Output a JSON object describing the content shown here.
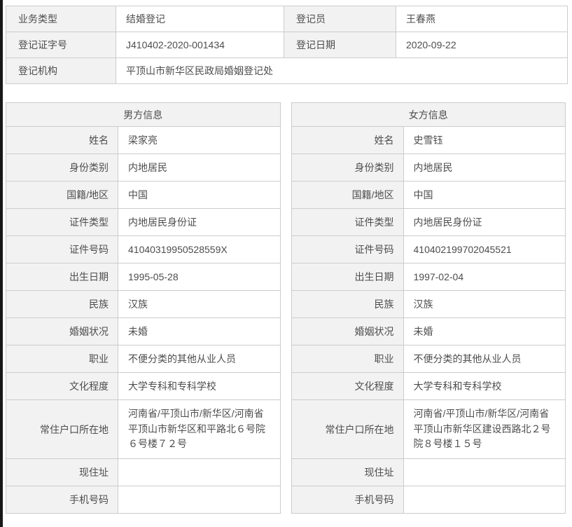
{
  "colors": {
    "label_background": "#f2f2f2",
    "value_background": "#ffffff",
    "border": "#cccccc",
    "text": "#4d4d4d",
    "left_edge_strip": "#181818"
  },
  "summary": {
    "business_type_label": "业务类型",
    "business_type_value": "结婚登记",
    "registrar_label": "登记员",
    "registrar_value": "王春燕",
    "certificate_no_label": "登记证字号",
    "certificate_no_value": "J410402-2020-001434",
    "registration_date_label": "登记日期",
    "registration_date_value": "2020-09-22",
    "registration_office_label": "登记机构",
    "registration_office_value": "平顶山市新华区民政局婚姻登记处"
  },
  "male": {
    "title": "男方信息",
    "fields": [
      {
        "label": "姓名",
        "value": "梁家亮"
      },
      {
        "label": "身份类别",
        "value": "内地居民"
      },
      {
        "label": "国籍/地区",
        "value": "中国"
      },
      {
        "label": "证件类型",
        "value": "内地居民身份证"
      },
      {
        "label": "证件号码",
        "value": "41040319950528559X"
      },
      {
        "label": "出生日期",
        "value": "1995-05-28"
      },
      {
        "label": "民族",
        "value": "汉族"
      },
      {
        "label": "婚姻状况",
        "value": "未婚"
      },
      {
        "label": "职业",
        "value": "不便分类的其他从业人员"
      },
      {
        "label": "文化程度",
        "value": "大学专科和专科学校"
      },
      {
        "label": "常住户口所在地",
        "value": "河南省/平顶山市/新华区/河南省平顶山市新华区和平路北６号院６号楼７２号"
      },
      {
        "label": "现住址",
        "value": ""
      },
      {
        "label": "手机号码",
        "value": ""
      }
    ]
  },
  "female": {
    "title": "女方信息",
    "fields": [
      {
        "label": "姓名",
        "value": "史雪钰"
      },
      {
        "label": "身份类别",
        "value": "内地居民"
      },
      {
        "label": "国籍/地区",
        "value": "中国"
      },
      {
        "label": "证件类型",
        "value": "内地居民身份证"
      },
      {
        "label": "证件号码",
        "value": "410402199702045521"
      },
      {
        "label": "出生日期",
        "value": "1997-02-04"
      },
      {
        "label": "民族",
        "value": "汉族"
      },
      {
        "label": "婚姻状况",
        "value": "未婚"
      },
      {
        "label": "职业",
        "value": "不便分类的其他从业人员"
      },
      {
        "label": "文化程度",
        "value": "大学专科和专科学校"
      },
      {
        "label": "常住户口所在地",
        "value": "河南省/平顶山市/新华区/河南省平顶山市新华区建设西路北２号院８号楼１５号"
      },
      {
        "label": "现住址",
        "value": ""
      },
      {
        "label": "手机号码",
        "value": ""
      }
    ]
  }
}
